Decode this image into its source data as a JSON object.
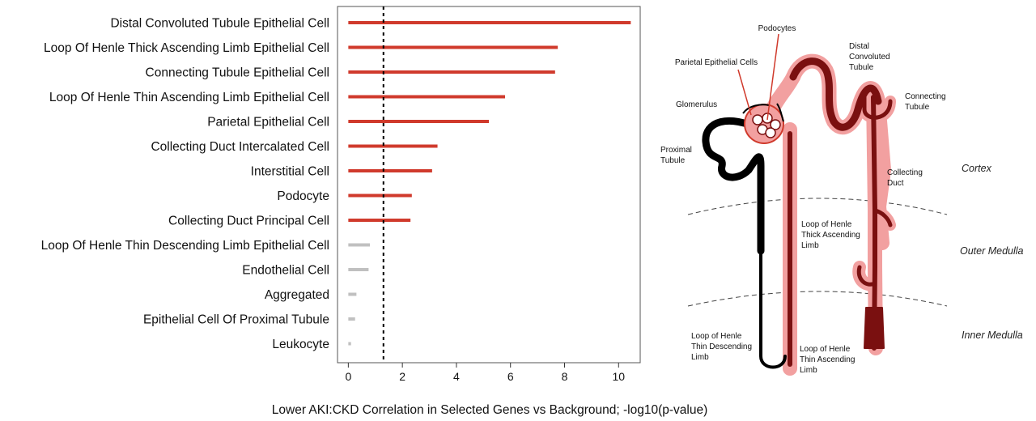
{
  "chart_data": {
    "type": "bar",
    "orientation": "horizontal",
    "categories": [
      "Distal Convoluted Tubule Epithelial Cell",
      "Loop Of Henle Thick Ascending Limb Epithelial Cell",
      "Connecting Tubule Epithelial Cell",
      "Loop Of Henle Thin Ascending Limb Epithelial Cell",
      "Parietal Epithelial Cell",
      "Collecting Duct Intercalated Cell",
      "Interstitial Cell",
      "Podocyte",
      "Collecting Duct Principal Cell",
      "Loop Of Henle Thin Descending Limb Epithelial Cell",
      "Endothelial Cell",
      "Aggregated",
      "Epithelial Cell Of Proximal Tubule",
      "Leukocyte"
    ],
    "values": [
      10.45,
      7.75,
      7.65,
      5.8,
      5.2,
      3.3,
      3.1,
      2.35,
      2.3,
      0.8,
      0.75,
      0.3,
      0.25,
      0.1
    ],
    "significant": [
      true,
      true,
      true,
      true,
      true,
      true,
      true,
      true,
      true,
      false,
      false,
      false,
      false,
      false
    ],
    "threshold": 1.3,
    "xlabel": "Lower AKI:CKD Correlation in Selected Genes vs Background; -log10(p-value)",
    "xticks": [
      0,
      2,
      4,
      6,
      8,
      10
    ],
    "xlim": [
      -0.4,
      10.8
    ],
    "colors": {
      "significant": "#d03a2c",
      "not_significant": "#c0c0c0",
      "threshold_line": "#000000"
    },
    "grid": false,
    "legend": "none"
  },
  "diagram": {
    "labels": {
      "podocytes": "Podocytes",
      "parietal": "Parietal Epithelial Cells",
      "distal_1": "Distal",
      "distal_2": "Convoluted",
      "distal_3": "Tubule",
      "connecting_1": "Connecting",
      "connecting_2": "Tubule",
      "glomerulus": "Glomerulus",
      "proximal_1": "Proximal",
      "proximal_2": "Tubule",
      "collecting_1": "Collecting",
      "collecting_2": "Duct",
      "thick_1": "Loop of Henle",
      "thick_2": "Thick Ascending",
      "thick_3": "Limb",
      "thindesc_1": "Loop of Henle",
      "thindesc_2": "Thin Descending",
      "thindesc_3": "Limb",
      "thinasc_1": "Loop of Henle",
      "thinasc_2": "Thin Ascending",
      "thinasc_3": "Limb"
    },
    "zones": {
      "cortex": "Cortex",
      "outer_medulla": "Outer Medulla",
      "inner_medulla": "Inner Medulla"
    },
    "colors": {
      "tubule_dark": "#7a1010",
      "halo": "#f2a0a0",
      "black": "#000000",
      "pointer": "#d03a2c"
    }
  }
}
